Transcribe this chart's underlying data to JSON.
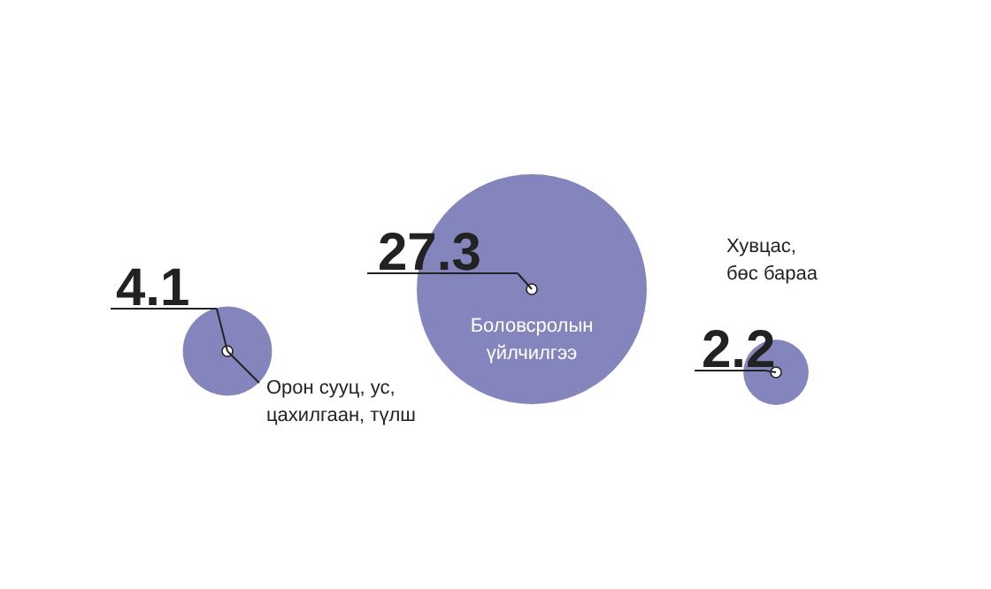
{
  "chart_data": {
    "type": "other",
    "categories": [
      "Орон сууц, ус,\nцахилгаан, түлш",
      "Боловсролын\nүйлчилгээ",
      "Хувцас,\nбөс бараа"
    ],
    "values": [
      4.1,
      27.3,
      2.2
    ],
    "color": "#8585bd",
    "data_labels": true
  }
}
